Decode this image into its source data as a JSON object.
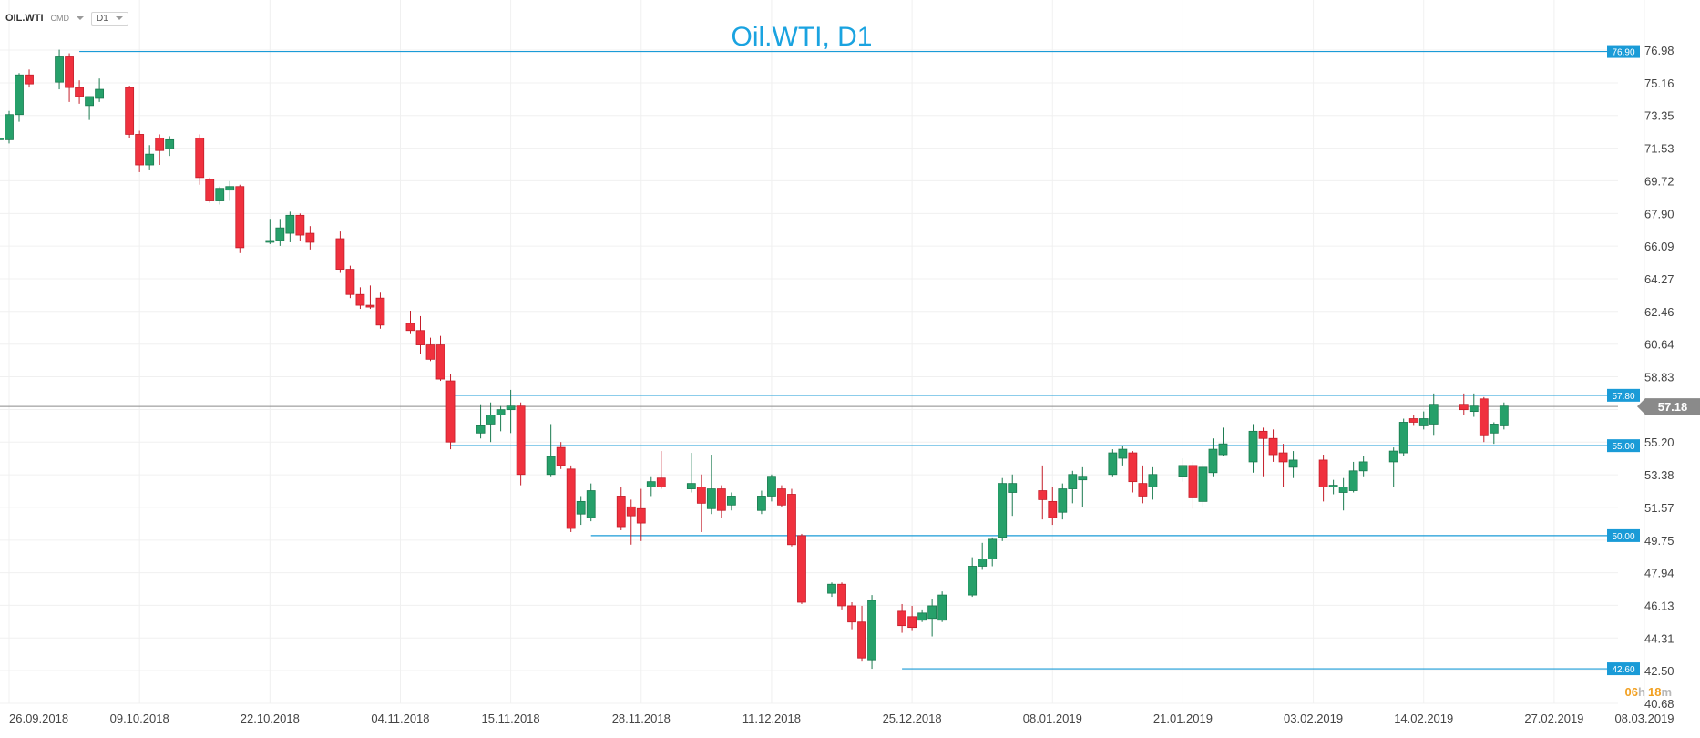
{
  "header": {
    "symbol": "OIL.WTI",
    "instrument_type": "CMD",
    "timeframe": "D1"
  },
  "countdown": {
    "hours": "06",
    "hours_unit": "h",
    "minutes": "18",
    "minutes_unit": "m"
  },
  "colors": {
    "up": "#26a06a",
    "down": "#f0313e",
    "level_line": "#1a9bd7",
    "price_line": "#8a8a8a",
    "title": "#1aa3e0"
  },
  "chart_data": {
    "type": "candlestick",
    "title": "Oil.WTI, D1",
    "y_ticks": [
      "76.98",
      "75.16",
      "73.35",
      "71.53",
      "69.72",
      "67.90",
      "66.09",
      "64.27",
      "62.46",
      "60.64",
      "58.83",
      "57.01",
      "55.20",
      "53.38",
      "51.57",
      "49.75",
      "47.94",
      "46.13",
      "44.31",
      "42.50",
      "40.68"
    ],
    "x_ticks": [
      "26.09.2018",
      "09.10.2018",
      "22.10.2018",
      "04.11.2018",
      "15.11.2018",
      "28.11.2018",
      "11.12.2018",
      "25.12.2018",
      "08.01.2019",
      "21.01.2019",
      "03.02.2019",
      "14.02.2019",
      "27.02.2019",
      "08.03.2019"
    ],
    "y_range": [
      40.68,
      76.98
    ],
    "x_range": [
      "2018-09-26",
      "2019-03-08"
    ],
    "levels": [
      {
        "label": "76.90",
        "value": 76.9,
        "from": "2018-10-03"
      },
      {
        "label": "57.80",
        "value": 57.8,
        "from": "2018-11-09"
      },
      {
        "label": "55.00",
        "value": 55.0,
        "from": "2018-11-09"
      },
      {
        "label": "50.00",
        "value": 50.0,
        "from": "2018-11-23"
      },
      {
        "label": "42.60",
        "value": 42.6,
        "from": "2018-12-24"
      }
    ],
    "current_price": {
      "label": "57.18",
      "value": 57.18
    },
    "candles": [
      {
        "d": "2018-09-25",
        "o": 72.0,
        "h": 72.3,
        "l": 71.8,
        "c": 72.1
      },
      {
        "d": "2018-09-26",
        "o": 72.0,
        "h": 73.6,
        "l": 71.8,
        "c": 73.4
      },
      {
        "d": "2018-09-27",
        "o": 73.4,
        "h": 75.7,
        "l": 73.0,
        "c": 75.6
      },
      {
        "d": "2018-09-28",
        "o": 75.6,
        "h": 75.9,
        "l": 74.9,
        "c": 75.1
      },
      {
        "d": "2018-10-01",
        "o": 75.2,
        "h": 77.0,
        "l": 74.8,
        "c": 76.6
      },
      {
        "d": "2018-10-02",
        "o": 76.6,
        "h": 76.8,
        "l": 74.1,
        "c": 74.9
      },
      {
        "d": "2018-10-03",
        "o": 74.9,
        "h": 75.3,
        "l": 74.0,
        "c": 74.4
      },
      {
        "d": "2018-10-04",
        "o": 73.9,
        "h": 74.4,
        "l": 73.1,
        "c": 74.4
      },
      {
        "d": "2018-10-05",
        "o": 74.3,
        "h": 75.4,
        "l": 74.1,
        "c": 74.8
      },
      {
        "d": "2018-10-08",
        "o": 74.9,
        "h": 75.0,
        "l": 72.1,
        "c": 72.3
      },
      {
        "d": "2018-10-09",
        "o": 72.3,
        "h": 72.5,
        "l": 70.2,
        "c": 70.6
      },
      {
        "d": "2018-10-10",
        "o": 70.6,
        "h": 71.7,
        "l": 70.3,
        "c": 71.2
      },
      {
        "d": "2018-10-11",
        "o": 72.1,
        "h": 72.3,
        "l": 70.6,
        "c": 71.4
      },
      {
        "d": "2018-10-12",
        "o": 71.5,
        "h": 72.2,
        "l": 71.1,
        "c": 72.0
      },
      {
        "d": "2018-10-15",
        "o": 72.1,
        "h": 72.3,
        "l": 69.5,
        "c": 69.9
      },
      {
        "d": "2018-10-16",
        "o": 69.8,
        "h": 69.9,
        "l": 68.5,
        "c": 68.6
      },
      {
        "d": "2018-10-17",
        "o": 68.6,
        "h": 69.4,
        "l": 68.4,
        "c": 69.3
      },
      {
        "d": "2018-10-18",
        "o": 69.2,
        "h": 69.7,
        "l": 68.6,
        "c": 69.4
      },
      {
        "d": "2018-10-19",
        "o": 69.4,
        "h": 69.5,
        "l": 65.7,
        "c": 66.0
      },
      {
        "d": "2018-10-22",
        "o": 66.3,
        "h": 67.6,
        "l": 66.2,
        "c": 66.4
      },
      {
        "d": "2018-10-23",
        "o": 66.4,
        "h": 67.6,
        "l": 66.1,
        "c": 67.1
      },
      {
        "d": "2018-10-24",
        "o": 66.8,
        "h": 68.0,
        "l": 66.3,
        "c": 67.8
      },
      {
        "d": "2018-10-25",
        "o": 67.8,
        "h": 67.9,
        "l": 66.4,
        "c": 66.7
      },
      {
        "d": "2018-10-26",
        "o": 66.8,
        "h": 67.2,
        "l": 65.9,
        "c": 66.3
      },
      {
        "d": "2018-10-29",
        "o": 66.5,
        "h": 66.9,
        "l": 64.6,
        "c": 64.8
      },
      {
        "d": "2018-10-30",
        "o": 64.8,
        "h": 65.0,
        "l": 63.2,
        "c": 63.4
      },
      {
        "d": "2018-10-31",
        "o": 63.4,
        "h": 63.8,
        "l": 62.6,
        "c": 62.8
      },
      {
        "d": "2018-11-01",
        "o": 62.8,
        "h": 63.9,
        "l": 62.6,
        "c": 62.7
      },
      {
        "d": "2018-11-02",
        "o": 63.2,
        "h": 63.5,
        "l": 61.5,
        "c": 61.7
      },
      {
        "d": "2018-11-05",
        "o": 61.8,
        "h": 62.5,
        "l": 61.2,
        "c": 61.4
      },
      {
        "d": "2018-11-06",
        "o": 61.4,
        "h": 62.2,
        "l": 60.1,
        "c": 60.6
      },
      {
        "d": "2018-11-07",
        "o": 60.6,
        "h": 61.0,
        "l": 59.7,
        "c": 59.8
      },
      {
        "d": "2018-11-08",
        "o": 60.6,
        "h": 61.1,
        "l": 58.6,
        "c": 58.7
      },
      {
        "d": "2018-11-09",
        "o": 58.6,
        "h": 59.0,
        "l": 54.8,
        "c": 55.2
      },
      {
        "d": "2018-11-12",
        "o": 55.7,
        "h": 57.3,
        "l": 55.4,
        "c": 56.1
      },
      {
        "d": "2018-11-13",
        "o": 56.2,
        "h": 57.4,
        "l": 55.2,
        "c": 56.7
      },
      {
        "d": "2018-11-14",
        "o": 56.7,
        "h": 57.2,
        "l": 55.8,
        "c": 57.0
      },
      {
        "d": "2018-11-15",
        "o": 57.0,
        "h": 58.1,
        "l": 55.7,
        "c": 57.2
      },
      {
        "d": "2018-11-16",
        "o": 57.2,
        "h": 57.4,
        "l": 52.8,
        "c": 53.4
      },
      {
        "d": "2018-11-19",
        "o": 53.4,
        "h": 56.2,
        "l": 53.3,
        "c": 54.4
      },
      {
        "d": "2018-11-20",
        "o": 54.9,
        "h": 55.2,
        "l": 53.7,
        "c": 53.9
      },
      {
        "d": "2018-11-21",
        "o": 53.7,
        "h": 53.9,
        "l": 50.2,
        "c": 50.4
      },
      {
        "d": "2018-11-22",
        "o": 51.2,
        "h": 52.2,
        "l": 50.6,
        "c": 51.9
      },
      {
        "d": "2018-11-23",
        "o": 51.0,
        "h": 52.9,
        "l": 50.8,
        "c": 52.5
      },
      {
        "d": "2018-11-26",
        "o": 52.2,
        "h": 52.7,
        "l": 50.3,
        "c": 50.5
      },
      {
        "d": "2018-11-27",
        "o": 51.6,
        "h": 52.0,
        "l": 49.5,
        "c": 51.1
      },
      {
        "d": "2018-11-28",
        "o": 51.5,
        "h": 52.6,
        "l": 49.7,
        "c": 50.7
      },
      {
        "d": "2018-11-29",
        "o": 52.7,
        "h": 53.3,
        "l": 52.2,
        "c": 53.0
      },
      {
        "d": "2018-11-30",
        "o": 53.2,
        "h": 54.7,
        "l": 52.6,
        "c": 52.7
      },
      {
        "d": "2018-12-03",
        "o": 52.6,
        "h": 54.6,
        "l": 52.4,
        "c": 52.9
      },
      {
        "d": "2018-12-04",
        "o": 52.7,
        "h": 53.4,
        "l": 50.2,
        "c": 51.8
      },
      {
        "d": "2018-12-05",
        "o": 51.5,
        "h": 54.5,
        "l": 51.2,
        "c": 52.6
      },
      {
        "d": "2018-12-06",
        "o": 52.6,
        "h": 52.8,
        "l": 51.0,
        "c": 51.4
      },
      {
        "d": "2018-12-07",
        "o": 51.7,
        "h": 52.4,
        "l": 51.4,
        "c": 52.2
      },
      {
        "d": "2018-12-10",
        "o": 51.4,
        "h": 52.5,
        "l": 51.2,
        "c": 52.2
      },
      {
        "d": "2018-12-11",
        "o": 52.2,
        "h": 53.4,
        "l": 51.9,
        "c": 53.3
      },
      {
        "d": "2018-12-12",
        "o": 52.6,
        "h": 52.8,
        "l": 51.6,
        "c": 51.7
      },
      {
        "d": "2018-12-13",
        "o": 52.3,
        "h": 52.6,
        "l": 49.4,
        "c": 49.5
      },
      {
        "d": "2018-12-14",
        "o": 50.0,
        "h": 50.1,
        "l": 46.2,
        "c": 46.3
      },
      {
        "d": "2018-12-17",
        "o": 46.8,
        "h": 47.4,
        "l": 46.6,
        "c": 47.3
      },
      {
        "d": "2018-12-18",
        "o": 47.3,
        "h": 47.4,
        "l": 45.9,
        "c": 46.1
      },
      {
        "d": "2018-12-19",
        "o": 46.1,
        "h": 46.3,
        "l": 44.8,
        "c": 45.2
      },
      {
        "d": "2018-12-20",
        "o": 45.2,
        "h": 46.1,
        "l": 43.0,
        "c": 43.2
      },
      {
        "d": "2018-12-21",
        "o": 43.1,
        "h": 46.7,
        "l": 42.6,
        "c": 46.4
      },
      {
        "d": "2018-12-24",
        "o": 45.8,
        "h": 46.2,
        "l": 44.6,
        "c": 45.0
      },
      {
        "d": "2018-12-25",
        "o": 45.5,
        "h": 46.1,
        "l": 44.7,
        "c": 44.9
      },
      {
        "d": "2018-12-26",
        "o": 45.3,
        "h": 45.9,
        "l": 45.2,
        "c": 45.7
      },
      {
        "d": "2018-12-27",
        "o": 45.4,
        "h": 46.5,
        "l": 44.4,
        "c": 46.1
      },
      {
        "d": "2018-12-28",
        "o": 45.3,
        "h": 46.9,
        "l": 45.2,
        "c": 46.7
      },
      {
        "d": "2018-12-31",
        "o": 46.7,
        "h": 48.8,
        "l": 46.6,
        "c": 48.3
      },
      {
        "d": "2019-01-01",
        "o": 48.3,
        "h": 49.6,
        "l": 48.1,
        "c": 48.7
      },
      {
        "d": "2019-01-02",
        "o": 48.7,
        "h": 49.9,
        "l": 48.3,
        "c": 49.8
      },
      {
        "d": "2019-01-03",
        "o": 49.9,
        "h": 53.2,
        "l": 49.7,
        "c": 52.9
      },
      {
        "d": "2019-01-04",
        "o": 52.4,
        "h": 53.4,
        "l": 51.1,
        "c": 52.9
      },
      {
        "d": "2019-01-07",
        "o": 52.5,
        "h": 53.9,
        "l": 50.9,
        "c": 52.0
      },
      {
        "d": "2019-01-08",
        "o": 51.9,
        "h": 52.7,
        "l": 50.6,
        "c": 51.0
      },
      {
        "d": "2019-01-09",
        "o": 51.3,
        "h": 52.9,
        "l": 50.9,
        "c": 52.6
      },
      {
        "d": "2019-01-10",
        "o": 52.6,
        "h": 53.6,
        "l": 51.8,
        "c": 53.4
      },
      {
        "d": "2019-01-11",
        "o": 53.1,
        "h": 53.8,
        "l": 51.6,
        "c": 53.3
      },
      {
        "d": "2019-01-14",
        "o": 53.4,
        "h": 54.8,
        "l": 53.3,
        "c": 54.6
      },
      {
        "d": "2019-01-15",
        "o": 54.3,
        "h": 55.0,
        "l": 53.9,
        "c": 54.8
      },
      {
        "d": "2019-01-16",
        "o": 54.6,
        "h": 54.7,
        "l": 52.4,
        "c": 53.0
      },
      {
        "d": "2019-01-17",
        "o": 52.9,
        "h": 53.9,
        "l": 51.8,
        "c": 52.2
      },
      {
        "d": "2019-01-18",
        "o": 52.7,
        "h": 53.8,
        "l": 52.0,
        "c": 53.4
      },
      {
        "d": "2019-01-21",
        "o": 53.3,
        "h": 54.3,
        "l": 53.0,
        "c": 53.9
      },
      {
        "d": "2019-01-22",
        "o": 53.9,
        "h": 54.1,
        "l": 51.5,
        "c": 52.1
      },
      {
        "d": "2019-01-23",
        "o": 51.9,
        "h": 54.0,
        "l": 51.6,
        "c": 53.8
      },
      {
        "d": "2019-01-24",
        "o": 53.5,
        "h": 55.4,
        "l": 53.3,
        "c": 54.8
      },
      {
        "d": "2019-01-25",
        "o": 54.5,
        "h": 56.0,
        "l": 54.4,
        "c": 55.1
      },
      {
        "d": "2019-01-28",
        "o": 54.1,
        "h": 56.2,
        "l": 53.5,
        "c": 55.8
      },
      {
        "d": "2019-01-29",
        "o": 55.8,
        "h": 56.0,
        "l": 53.3,
        "c": 55.4
      },
      {
        "d": "2019-01-30",
        "o": 55.4,
        "h": 55.9,
        "l": 54.1,
        "c": 54.5
      },
      {
        "d": "2019-01-31",
        "o": 54.6,
        "h": 55.1,
        "l": 52.7,
        "c": 54.1
      },
      {
        "d": "2019-02-01",
        "o": 53.8,
        "h": 54.7,
        "l": 53.2,
        "c": 54.2
      },
      {
        "d": "2019-02-04",
        "o": 54.2,
        "h": 54.5,
        "l": 51.9,
        "c": 52.7
      },
      {
        "d": "2019-02-05",
        "o": 52.7,
        "h": 53.1,
        "l": 52.3,
        "c": 52.8
      },
      {
        "d": "2019-02-06",
        "o": 52.4,
        "h": 53.2,
        "l": 51.4,
        "c": 52.7
      },
      {
        "d": "2019-02-07",
        "o": 52.5,
        "h": 54.1,
        "l": 52.4,
        "c": 53.6
      },
      {
        "d": "2019-02-08",
        "o": 53.6,
        "h": 54.4,
        "l": 53.3,
        "c": 54.1
      },
      {
        "d": "2019-02-11",
        "o": 54.1,
        "h": 54.9,
        "l": 52.7,
        "c": 54.7
      },
      {
        "d": "2019-02-12",
        "o": 54.6,
        "h": 56.5,
        "l": 54.4,
        "c": 56.3
      },
      {
        "d": "2019-02-13",
        "o": 56.5,
        "h": 56.7,
        "l": 56.1,
        "c": 56.3
      },
      {
        "d": "2019-02-14",
        "o": 56.1,
        "h": 56.9,
        "l": 55.9,
        "c": 56.5
      },
      {
        "d": "2019-02-15",
        "o": 56.2,
        "h": 57.9,
        "l": 55.6,
        "c": 57.3
      },
      {
        "d": "2019-02-18",
        "o": 57.3,
        "h": 57.9,
        "l": 56.7,
        "c": 57.0
      },
      {
        "d": "2019-02-19",
        "o": 56.9,
        "h": 57.9,
        "l": 56.6,
        "c": 57.2
      },
      {
        "d": "2019-02-20",
        "o": 57.6,
        "h": 57.7,
        "l": 55.2,
        "c": 55.6
      },
      {
        "d": "2019-02-21",
        "o": 55.7,
        "h": 56.3,
        "l": 55.1,
        "c": 56.2
      },
      {
        "d": "2019-02-22",
        "o": 56.1,
        "h": 57.4,
        "l": 55.9,
        "c": 57.2
      }
    ]
  }
}
